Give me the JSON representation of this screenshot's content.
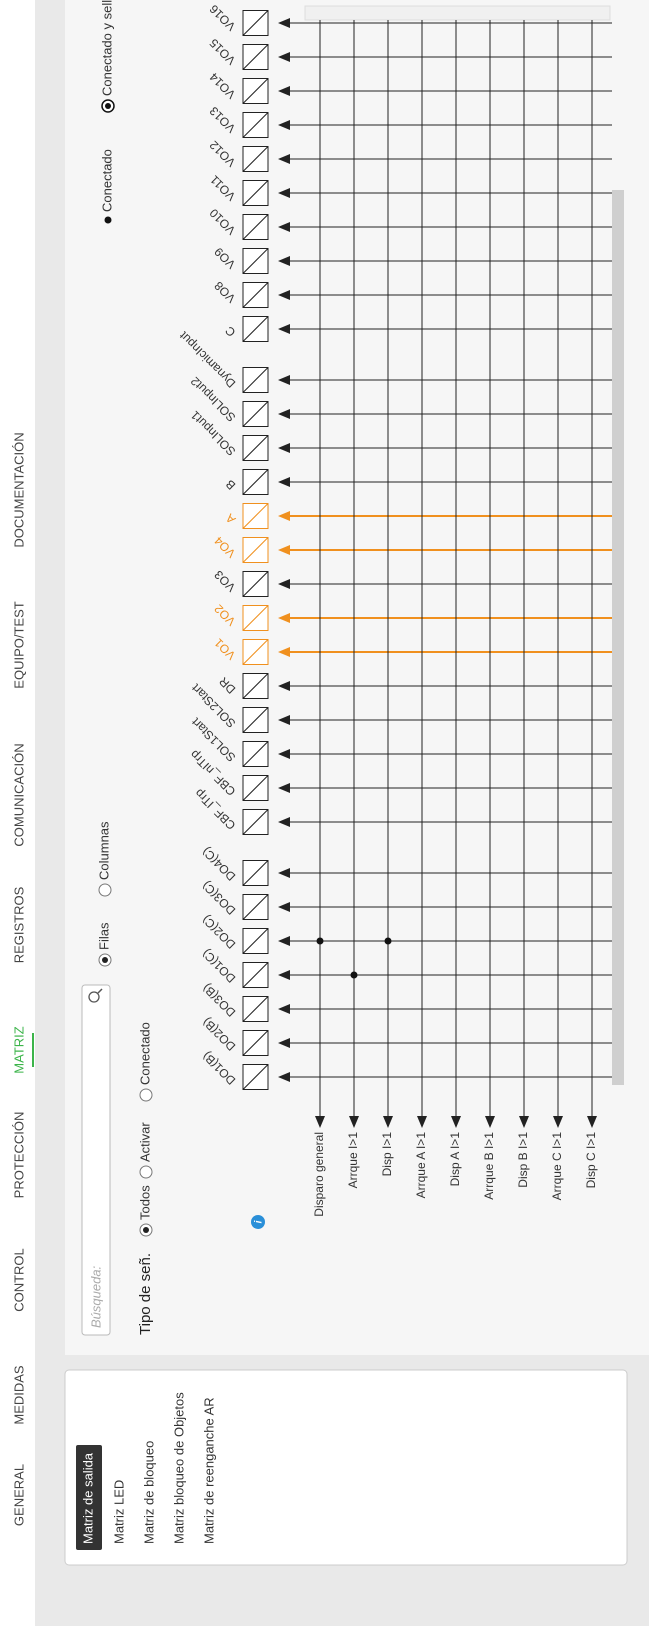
{
  "nav": {
    "items": [
      "GENERAL",
      "MEDIDAS",
      "CONTROL",
      "PROTECCIÓN",
      "MATRIZ",
      "REGISTROS",
      "COMUNICACIÓN",
      "EQUIPO/TEST",
      "DOCUMENTACIÓN"
    ],
    "active": 4
  },
  "sidebar": {
    "items": [
      "Matriz de salida",
      "Matriz LED",
      "Matriz de bloqueo",
      "Matriz bloqueo de Objetos",
      "Matriz de reenganche AR"
    ],
    "active": 0
  },
  "toolbar": {
    "search_placeholder": "Búsqueda:",
    "view_options": [
      "Filas",
      "Columnas"
    ],
    "view_selected": 0,
    "signal_type_label": "Tipo de señ.",
    "signal_options": [
      "Todos",
      "Activar",
      "Conectado"
    ],
    "signal_selected": 0,
    "legend": [
      "Conectado",
      "Conectado y sellado"
    ]
  },
  "matrix": {
    "rows": [
      "Disparo general",
      "Arrque I>1",
      "Disp I>1",
      "Arrque A I>1",
      "Disp A I>1",
      "Arrque B I>1",
      "Disp B I>1",
      "Arrque C I>1",
      "Disp C I>1"
    ],
    "column_groups": [
      [
        "DO1(B)",
        "DO2(B)",
        "DO3(B)",
        "DO1(C)",
        "DO2(C)",
        "DO3(C)",
        "DO4(C)"
      ],
      [
        "CBF_ITrp",
        "CBF_nITrp",
        "SOL1Start",
        "SOL2Start",
        "DR",
        "VO1",
        "VO2",
        "VO3",
        "VO4",
        "A",
        "B",
        "SOLInput1",
        "SOLInput2",
        "DynamicInput"
      ],
      [
        "C",
        "VO8",
        "VO9",
        "VO10",
        "VO11",
        "VO12",
        "VO13",
        "VO14",
        "VO15",
        "VO16"
      ]
    ],
    "highlighted": [
      "VO1",
      "VO2",
      "VO4",
      "A"
    ],
    "highlight_color": "#f0901e",
    "connections": [
      {
        "row": "Disparo general",
        "column": "DO2(C)"
      },
      {
        "row": "Arrque I>1",
        "column": "DO1(C)"
      },
      {
        "row": "Disp I>1",
        "column": "DO2(C)"
      }
    ]
  }
}
